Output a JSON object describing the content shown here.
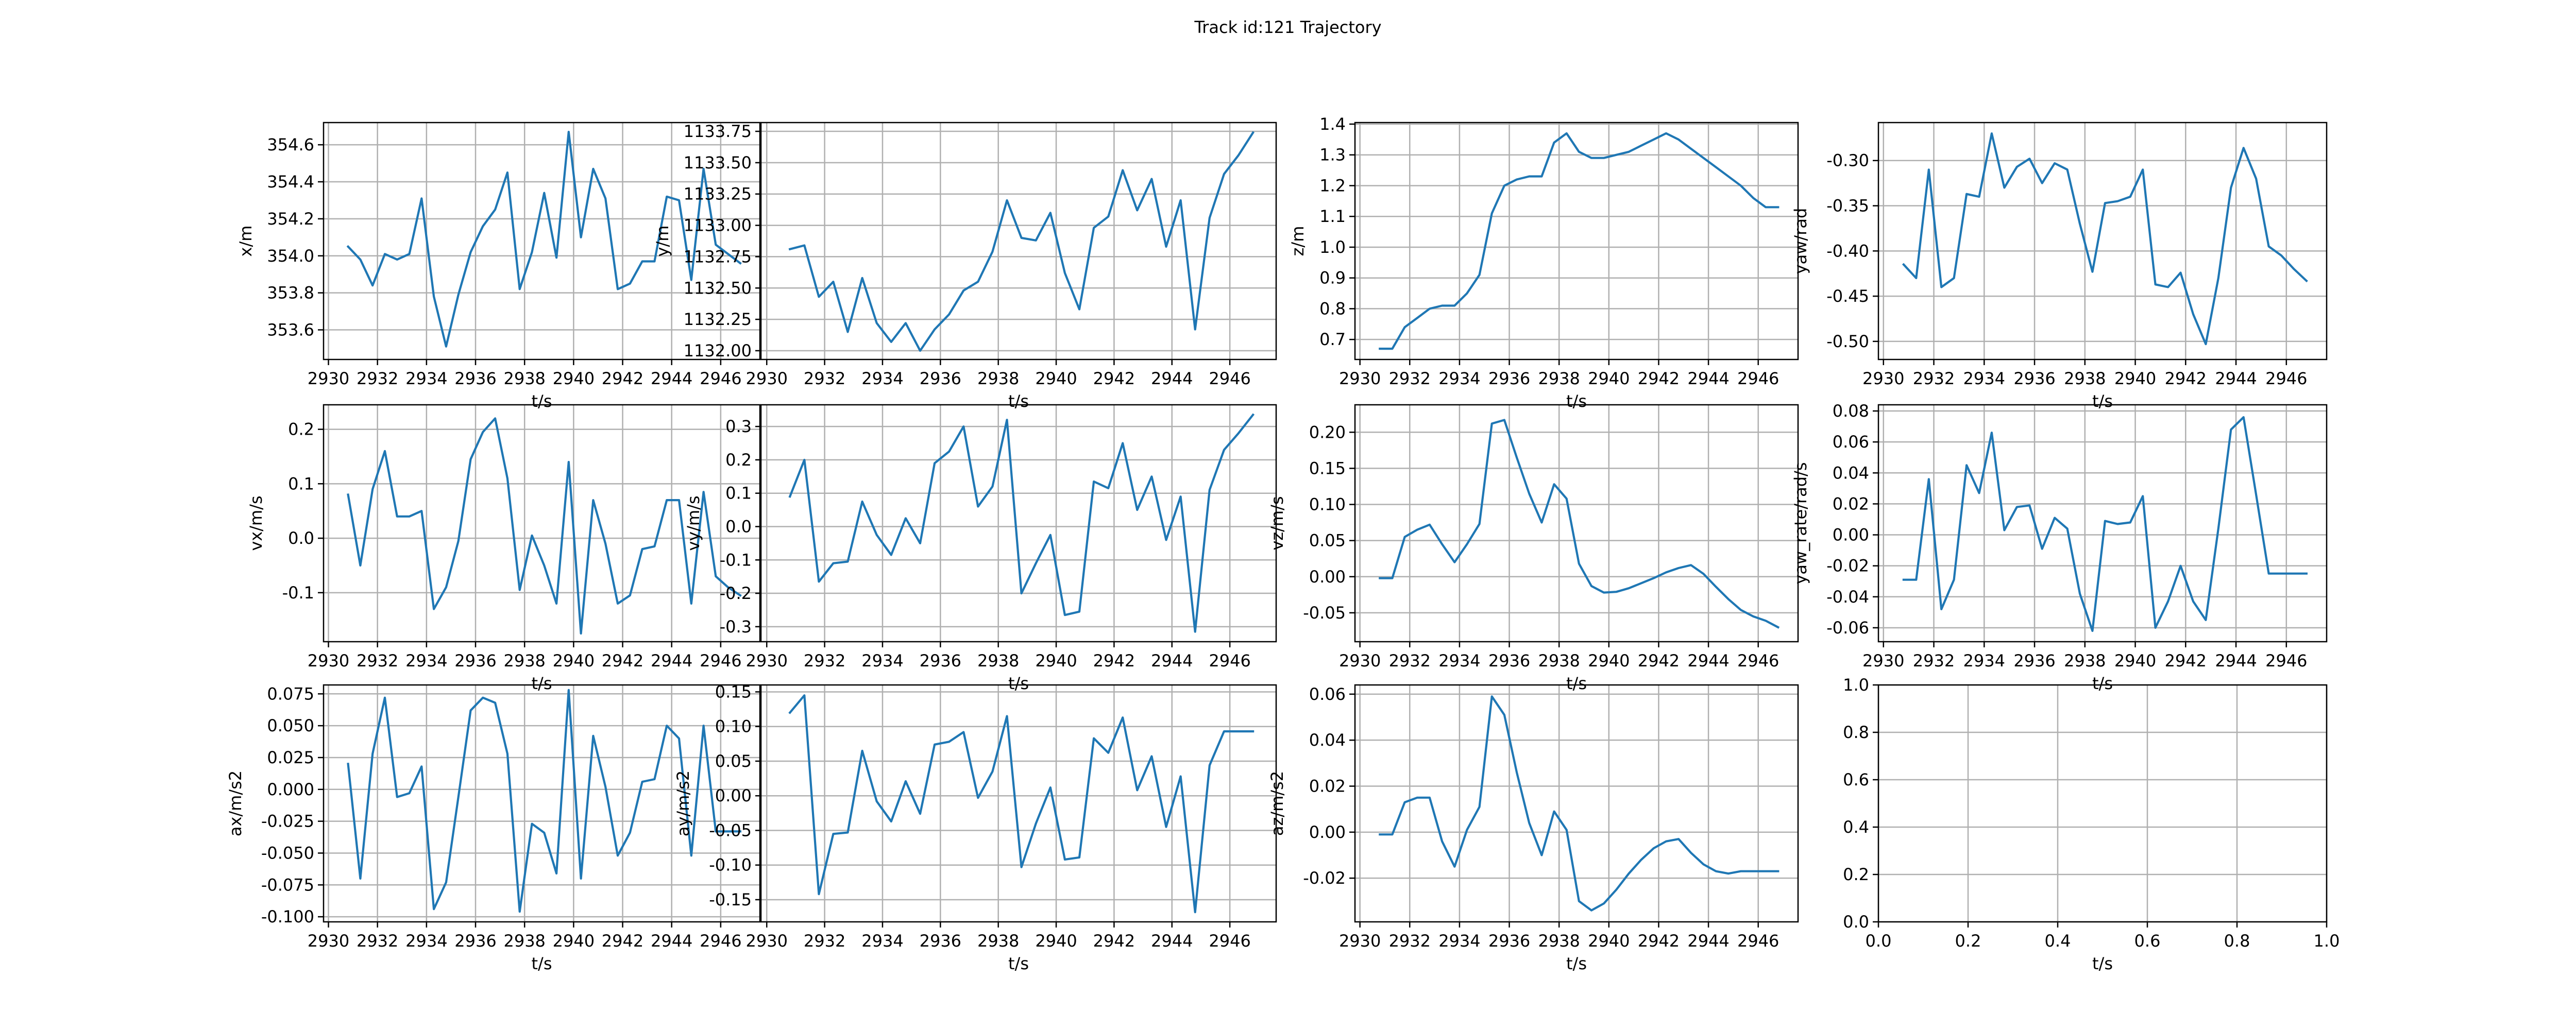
{
  "figure": {
    "title": "Track id:121 Trajectory",
    "line_color": "#1f77b4",
    "grid_color": "#b0b0b0"
  },
  "chart_data": [
    {
      "type": "line",
      "xlabel": "t/s",
      "ylabel": "x/m",
      "xlim": [
        2929.8,
        2947.6
      ],
      "ylim": [
        353.44,
        354.72
      ],
      "xticks": [
        "2930",
        "2932",
        "2934",
        "2936",
        "2938",
        "2940",
        "2942",
        "2944",
        "2946"
      ],
      "yticks": [
        "353.6",
        "353.8",
        "354.0",
        "354.2",
        "354.4",
        "354.6"
      ],
      "grid": true,
      "x": [
        2930.8,
        2931.3,
        2931.8,
        2932.3,
        2932.8,
        2933.3,
        2933.8,
        2934.3,
        2934.8,
        2935.3,
        2935.8,
        2936.3,
        2936.8,
        2937.3,
        2937.8,
        2938.3,
        2938.8,
        2939.3,
        2939.8,
        2940.3,
        2940.8,
        2941.3,
        2941.8,
        2942.3,
        2942.8,
        2943.3,
        2943.8,
        2944.3,
        2944.8,
        2945.3,
        2945.8,
        2946.3,
        2946.8
      ],
      "y": [
        354.05,
        353.98,
        353.84,
        354.01,
        353.98,
        354.01,
        354.31,
        353.78,
        353.51,
        353.79,
        354.02,
        354.16,
        354.25,
        354.45,
        353.82,
        354.02,
        354.34,
        353.99,
        354.67,
        354.1,
        354.47,
        354.31,
        353.82,
        353.85,
        353.97,
        353.97,
        354.32,
        354.3,
        353.87,
        354.47,
        354.06,
        354.01,
        353.96
      ]
    },
    {
      "type": "line",
      "xlabel": "t/s",
      "ylabel": "y/m",
      "xlim": [
        2929.8,
        2947.6
      ],
      "ylim": [
        1131.93,
        1133.82
      ],
      "xticks": [
        "2930",
        "2932",
        "2934",
        "2936",
        "2938",
        "2940",
        "2942",
        "2944",
        "2946"
      ],
      "yticks": [
        "1132.00",
        "1132.25",
        "1132.50",
        "1132.75",
        "1133.00",
        "1133.25",
        "1133.50",
        "1133.75"
      ],
      "grid": true,
      "x": [
        2930.8,
        2931.3,
        2931.8,
        2932.3,
        2932.8,
        2933.3,
        2933.8,
        2934.3,
        2934.8,
        2935.3,
        2935.8,
        2936.3,
        2936.8,
        2937.3,
        2937.8,
        2938.3,
        2938.8,
        2939.3,
        2939.8,
        2940.3,
        2940.8,
        2941.3,
        2941.8,
        2942.3,
        2942.8,
        2943.3,
        2943.8,
        2944.3,
        2944.8,
        2945.3,
        2945.8,
        2946.3,
        2946.8
      ],
      "y": [
        1132.81,
        1132.84,
        1132.43,
        1132.55,
        1132.15,
        1132.58,
        1132.22,
        1132.07,
        1132.22,
        1132.0,
        1132.17,
        1132.29,
        1132.48,
        1132.55,
        1132.79,
        1133.2,
        1132.9,
        1132.88,
        1133.1,
        1132.62,
        1132.33,
        1132.98,
        1133.07,
        1133.44,
        1133.12,
        1133.37,
        1132.83,
        1133.2,
        1132.17,
        1133.06,
        1133.41,
        1133.56,
        1133.74
      ]
    },
    {
      "type": "line",
      "xlabel": "t/s",
      "ylabel": "z/m",
      "xlim": [
        2929.8,
        2947.6
      ],
      "ylim": [
        0.635,
        1.405
      ],
      "xticks": [
        "2930",
        "2932",
        "2934",
        "2936",
        "2938",
        "2940",
        "2942",
        "2944",
        "2946"
      ],
      "yticks": [
        "0.7",
        "0.8",
        "0.9",
        "1.0",
        "1.1",
        "1.2",
        "1.3",
        "1.4"
      ],
      "grid": true,
      "x": [
        2930.8,
        2931.3,
        2931.8,
        2932.3,
        2932.8,
        2933.3,
        2933.8,
        2934.3,
        2934.8,
        2935.3,
        2935.8,
        2936.3,
        2936.8,
        2937.3,
        2937.8,
        2938.3,
        2938.8,
        2939.3,
        2939.8,
        2940.3,
        2940.8,
        2941.3,
        2941.8,
        2942.3,
        2942.8,
        2943.3,
        2943.8,
        2944.3,
        2944.8,
        2945.3,
        2945.8,
        2946.3,
        2946.8
      ],
      "y": [
        0.67,
        0.67,
        0.74,
        0.77,
        0.8,
        0.81,
        0.81,
        0.85,
        0.91,
        1.11,
        1.2,
        1.22,
        1.23,
        1.23,
        1.34,
        1.37,
        1.31,
        1.29,
        1.29,
        1.3,
        1.31,
        1.33,
        1.35,
        1.37,
        1.35,
        1.32,
        1.29,
        1.26,
        1.23,
        1.2,
        1.16,
        1.13,
        1.13
      ]
    },
    {
      "type": "line",
      "xlabel": "t/s",
      "ylabel": "yaw/rad",
      "xlim": [
        2929.8,
        2947.6
      ],
      "ylim": [
        -0.52,
        -0.258
      ],
      "xticks": [
        "2930",
        "2932",
        "2934",
        "2936",
        "2938",
        "2940",
        "2942",
        "2944",
        "2946"
      ],
      "yticks": [
        "-0.50",
        "-0.45",
        "-0.40",
        "-0.35",
        "-0.30"
      ],
      "grid": true,
      "x": [
        2930.8,
        2931.3,
        2931.8,
        2932.3,
        2932.8,
        2933.3,
        2933.8,
        2934.3,
        2934.8,
        2935.3,
        2935.8,
        2936.3,
        2936.8,
        2937.3,
        2937.8,
        2938.3,
        2938.8,
        2939.3,
        2939.8,
        2940.3,
        2940.8,
        2941.3,
        2941.8,
        2942.3,
        2942.8,
        2943.3,
        2943.8,
        2944.3,
        2944.8,
        2945.3,
        2945.8,
        2946.3,
        2946.8
      ],
      "y": [
        -0.415,
        -0.43,
        -0.31,
        -0.44,
        -0.43,
        -0.337,
        -0.34,
        -0.27,
        -0.33,
        -0.307,
        -0.298,
        -0.325,
        -0.303,
        -0.31,
        -0.37,
        -0.423,
        -0.347,
        -0.345,
        -0.34,
        -0.31,
        -0.437,
        -0.44,
        -0.424,
        -0.47,
        -0.503,
        -0.43,
        -0.33,
        -0.286,
        -0.32,
        -0.395,
        -0.405,
        -0.42,
        -0.433
      ]
    },
    {
      "type": "line",
      "xlabel": "t/s",
      "ylabel": "vx/m/s",
      "xlim": [
        2929.8,
        2947.6
      ],
      "ylim": [
        -0.19,
        0.245
      ],
      "xticks": [
        "2930",
        "2932",
        "2934",
        "2936",
        "2938",
        "2940",
        "2942",
        "2944",
        "2946"
      ],
      "yticks": [
        "-0.1",
        "0.0",
        "0.1",
        "0.2"
      ],
      "grid": true,
      "x": [
        2930.8,
        2931.3,
        2931.8,
        2932.3,
        2932.8,
        2933.3,
        2933.8,
        2934.3,
        2934.8,
        2935.3,
        2935.8,
        2936.3,
        2936.8,
        2937.3,
        2937.8,
        2938.3,
        2938.8,
        2939.3,
        2939.8,
        2940.3,
        2940.8,
        2941.3,
        2941.8,
        2942.3,
        2942.8,
        2943.3,
        2943.8,
        2944.3,
        2944.8,
        2945.3,
        2945.8,
        2946.3,
        2946.8
      ],
      "y": [
        0.08,
        -0.05,
        0.09,
        0.16,
        0.04,
        0.04,
        0.05,
        -0.13,
        -0.09,
        -0.005,
        0.145,
        0.195,
        0.22,
        0.11,
        -0.095,
        0.005,
        -0.05,
        -0.12,
        0.14,
        -0.175,
        0.07,
        -0.01,
        -0.12,
        -0.105,
        -0.02,
        -0.015,
        0.07,
        0.07,
        -0.12,
        0.085,
        -0.07,
        -0.09,
        -0.105
      ]
    },
    {
      "type": "line",
      "xlabel": "t/s",
      "ylabel": "vy/m/s",
      "xlim": [
        2929.8,
        2947.6
      ],
      "ylim": [
        -0.345,
        0.365
      ],
      "xticks": [
        "2930",
        "2932",
        "2934",
        "2936",
        "2938",
        "2940",
        "2942",
        "2944",
        "2946"
      ],
      "yticks": [
        "-0.3",
        "-0.2",
        "-0.1",
        "0.0",
        "0.1",
        "0.2",
        "0.3"
      ],
      "grid": true,
      "x": [
        2930.8,
        2931.3,
        2931.8,
        2932.3,
        2932.8,
        2933.3,
        2933.8,
        2934.3,
        2934.8,
        2935.3,
        2935.8,
        2936.3,
        2936.8,
        2937.3,
        2937.8,
        2938.3,
        2938.8,
        2939.3,
        2939.8,
        2940.3,
        2940.8,
        2941.3,
        2941.8,
        2942.3,
        2942.8,
        2943.3,
        2943.8,
        2944.3,
        2944.8,
        2945.3,
        2945.8,
        2946.3,
        2946.8
      ],
      "y": [
        0.09,
        0.2,
        -0.165,
        -0.11,
        -0.105,
        0.075,
        -0.025,
        -0.085,
        0.025,
        -0.05,
        0.19,
        0.225,
        0.3,
        0.06,
        0.12,
        0.32,
        -0.2,
        -0.11,
        -0.025,
        -0.265,
        -0.255,
        0.135,
        0.115,
        0.25,
        0.05,
        0.15,
        -0.04,
        0.09,
        -0.315,
        0.11,
        0.23,
        0.28,
        0.335
      ]
    },
    {
      "type": "line",
      "xlabel": "t/s",
      "ylabel": "vz/m/s",
      "xlim": [
        2929.8,
        2947.6
      ],
      "ylim": [
        -0.09,
        0.238
      ],
      "xticks": [
        "2930",
        "2932",
        "2934",
        "2936",
        "2938",
        "2940",
        "2942",
        "2944",
        "2946"
      ],
      "yticks": [
        "-0.05",
        "0.00",
        "0.05",
        "0.10",
        "0.15",
        "0.20"
      ],
      "grid": true,
      "x": [
        2930.8,
        2931.3,
        2931.8,
        2932.3,
        2932.8,
        2933.3,
        2933.8,
        2934.3,
        2934.8,
        2935.3,
        2935.8,
        2936.3,
        2936.8,
        2937.3,
        2937.8,
        2938.3,
        2938.8,
        2939.3,
        2939.8,
        2940.3,
        2940.8,
        2941.3,
        2941.8,
        2942.3,
        2942.8,
        2943.3,
        2943.8,
        2944.3,
        2944.8,
        2945.3,
        2945.8,
        2946.3,
        2946.8
      ],
      "y": [
        -0.002,
        -0.002,
        0.055,
        0.065,
        0.072,
        0.045,
        0.02,
        0.045,
        0.073,
        0.212,
        0.217,
        0.165,
        0.115,
        0.075,
        0.128,
        0.108,
        0.018,
        -0.013,
        -0.022,
        -0.021,
        -0.016,
        -0.009,
        -0.002,
        0.006,
        0.012,
        0.016,
        0.004,
        -0.014,
        -0.031,
        -0.046,
        -0.055,
        -0.061,
        -0.07
      ]
    },
    {
      "type": "line",
      "xlabel": "t/s",
      "ylabel": "yaw_rate/rad/s",
      "xlim": [
        2929.8,
        2947.6
      ],
      "ylim": [
        -0.069,
        0.084
      ],
      "xticks": [
        "2930",
        "2932",
        "2934",
        "2936",
        "2938",
        "2940",
        "2942",
        "2944",
        "2946"
      ],
      "yticks": [
        "-0.06",
        "-0.04",
        "-0.02",
        "0.00",
        "0.02",
        "0.04",
        "0.06",
        "0.08"
      ],
      "grid": true,
      "x": [
        2930.8,
        2931.3,
        2931.8,
        2932.3,
        2932.8,
        2933.3,
        2933.8,
        2934.3,
        2934.8,
        2935.3,
        2935.8,
        2936.3,
        2936.8,
        2937.3,
        2937.8,
        2938.3,
        2938.8,
        2939.3,
        2939.8,
        2940.3,
        2940.8,
        2941.3,
        2941.8,
        2942.3,
        2942.8,
        2943.3,
        2943.8,
        2944.3,
        2944.8,
        2945.3,
        2945.8,
        2946.3,
        2946.8
      ],
      "y": [
        -0.029,
        -0.029,
        0.036,
        -0.048,
        -0.029,
        0.045,
        0.027,
        0.066,
        0.003,
        0.018,
        0.019,
        -0.009,
        0.011,
        0.004,
        -0.038,
        -0.062,
        0.009,
        0.007,
        0.008,
        0.025,
        -0.06,
        -0.043,
        -0.02,
        -0.043,
        -0.055,
        0.004,
        0.068,
        0.076,
        0.026,
        -0.025,
        -0.025,
        -0.025,
        -0.025
      ]
    },
    {
      "type": "line",
      "xlabel": "t/s",
      "ylabel": "ax/m/s2",
      "xlim": [
        2929.8,
        2947.6
      ],
      "ylim": [
        -0.104,
        0.082
      ],
      "xticks": [
        "2930",
        "2932",
        "2934",
        "2936",
        "2938",
        "2940",
        "2942",
        "2944",
        "2946"
      ],
      "yticks": [
        "-0.100",
        "-0.075",
        "-0.050",
        "-0.025",
        "0.000",
        "0.025",
        "0.050",
        "0.075"
      ],
      "grid": true,
      "x": [
        2930.8,
        2931.3,
        2931.8,
        2932.3,
        2932.8,
        2933.3,
        2933.8,
        2934.3,
        2934.8,
        2935.3,
        2935.8,
        2936.3,
        2936.8,
        2937.3,
        2937.8,
        2938.3,
        2938.8,
        2939.3,
        2939.8,
        2940.3,
        2940.8,
        2941.3,
        2941.8,
        2942.3,
        2942.8,
        2943.3,
        2943.8,
        2944.3,
        2944.8,
        2945.3,
        2945.8,
        2946.3,
        2946.8
      ],
      "y": [
        0.02,
        -0.07,
        0.028,
        0.072,
        -0.006,
        -0.003,
        0.018,
        -0.094,
        -0.073,
        -0.006,
        0.062,
        0.072,
        0.068,
        0.028,
        -0.096,
        -0.027,
        -0.034,
        -0.066,
        0.078,
        -0.07,
        0.042,
        0.002,
        -0.052,
        -0.034,
        0.006,
        0.008,
        0.05,
        0.04,
        -0.052,
        0.05,
        -0.033,
        -0.033,
        -0.033
      ]
    },
    {
      "type": "line",
      "xlabel": "t/s",
      "ylabel": "ay/m/s2",
      "xlim": [
        2929.8,
        2947.6
      ],
      "ylim": [
        -0.182,
        0.16
      ],
      "xticks": [
        "2930",
        "2932",
        "2934",
        "2936",
        "2938",
        "2940",
        "2942",
        "2944",
        "2946"
      ],
      "yticks": [
        "-0.15",
        "-0.10",
        "-0.05",
        "0.00",
        "0.05",
        "0.10",
        "0.15"
      ],
      "grid": true,
      "x": [
        2930.8,
        2931.3,
        2931.8,
        2932.3,
        2932.8,
        2933.3,
        2933.8,
        2934.3,
        2934.8,
        2935.3,
        2935.8,
        2936.3,
        2936.8,
        2937.3,
        2937.8,
        2938.3,
        2938.8,
        2939.3,
        2939.8,
        2940.3,
        2940.8,
        2941.3,
        2941.8,
        2942.3,
        2942.8,
        2943.3,
        2943.8,
        2944.3,
        2944.8,
        2945.3,
        2945.8,
        2946.3,
        2946.8
      ],
      "y": [
        0.12,
        0.145,
        -0.142,
        -0.055,
        -0.053,
        0.065,
        -0.008,
        -0.037,
        0.021,
        -0.026,
        0.074,
        0.078,
        0.092,
        -0.003,
        0.035,
        0.115,
        -0.103,
        -0.04,
        0.012,
        -0.092,
        -0.089,
        0.083,
        0.062,
        0.113,
        0.008,
        0.057,
        -0.045,
        0.028,
        -0.168,
        0.044,
        0.093,
        0.093,
        0.093
      ]
    },
    {
      "type": "line",
      "xlabel": "t/s",
      "ylabel": "az/m/s2",
      "xlim": [
        2929.8,
        2947.6
      ],
      "ylim": [
        -0.039,
        0.064
      ],
      "xticks": [
        "2930",
        "2932",
        "2934",
        "2936",
        "2938",
        "2940",
        "2942",
        "2944",
        "2946"
      ],
      "yticks": [
        "-0.02",
        "0.00",
        "0.02",
        "0.04",
        "0.06"
      ],
      "grid": true,
      "x": [
        2930.8,
        2931.3,
        2931.8,
        2932.3,
        2932.8,
        2933.3,
        2933.8,
        2934.3,
        2934.8,
        2935.3,
        2935.8,
        2936.3,
        2936.8,
        2937.3,
        2937.8,
        2938.3,
        2938.8,
        2939.3,
        2939.8,
        2940.3,
        2940.8,
        2941.3,
        2941.8,
        2942.3,
        2942.8,
        2943.3,
        2943.8,
        2944.3,
        2944.8,
        2945.3,
        2945.8,
        2946.3,
        2946.8
      ],
      "y": [
        -0.001,
        -0.001,
        0.013,
        0.015,
        0.015,
        -0.004,
        -0.015,
        0.001,
        0.011,
        0.059,
        0.051,
        0.026,
        0.004,
        -0.01,
        0.009,
        0.001,
        -0.03,
        -0.034,
        -0.031,
        -0.025,
        -0.018,
        -0.012,
        -0.007,
        -0.004,
        -0.003,
        -0.009,
        -0.014,
        -0.017,
        -0.018,
        -0.017,
        -0.017,
        -0.017,
        -0.017
      ]
    },
    {
      "type": "line",
      "xlabel": "t/s",
      "ylabel": "",
      "xlim": [
        0.0,
        1.0
      ],
      "ylim": [
        0.0,
        1.0
      ],
      "xticks": [
        "0.0",
        "0.2",
        "0.4",
        "0.6",
        "0.8",
        "1.0"
      ],
      "yticks": [
        "0.0",
        "0.2",
        "0.4",
        "0.6",
        "0.8",
        "1.0"
      ],
      "grid": true,
      "x": [],
      "y": []
    }
  ]
}
